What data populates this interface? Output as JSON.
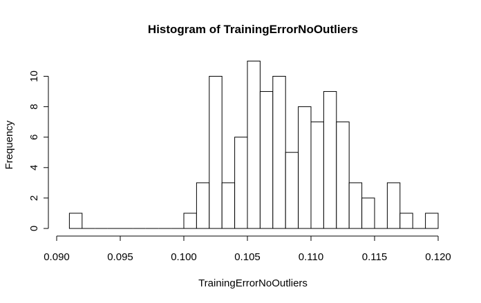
{
  "chart_data": {
    "type": "bar",
    "title": "Histogram of TrainingErrorNoOutliers",
    "xlabel": "TrainingErrorNoOutliers",
    "ylabel": "Frequency",
    "bin_width": 0.001,
    "bin_starts": [
      0.091,
      0.092,
      0.093,
      0.094,
      0.095,
      0.096,
      0.097,
      0.098,
      0.099,
      0.1,
      0.101,
      0.102,
      0.103,
      0.104,
      0.105,
      0.106,
      0.107,
      0.108,
      0.109,
      0.11,
      0.111,
      0.112,
      0.113,
      0.114,
      0.115,
      0.116,
      0.117,
      0.118,
      0.119
    ],
    "values": [
      1,
      0,
      0,
      0,
      0,
      0,
      0,
      0,
      0,
      1,
      3,
      10,
      3,
      6,
      11,
      9,
      10,
      5,
      8,
      7,
      9,
      7,
      3,
      2,
      0,
      3,
      1,
      0,
      1
    ],
    "xlim": [
      0.09,
      0.12
    ],
    "ylim": [
      0,
      11
    ],
    "xticks": [
      0.09,
      0.095,
      0.1,
      0.105,
      0.11,
      0.115,
      0.12
    ],
    "xtick_labels": [
      "0.090",
      "0.095",
      "0.100",
      "0.105",
      "0.110",
      "0.115",
      "0.120"
    ],
    "yticks": [
      0,
      2,
      4,
      6,
      8,
      10
    ],
    "ytick_labels": [
      "0",
      "2",
      "4",
      "6",
      "8",
      "10"
    ],
    "grid": false
  }
}
